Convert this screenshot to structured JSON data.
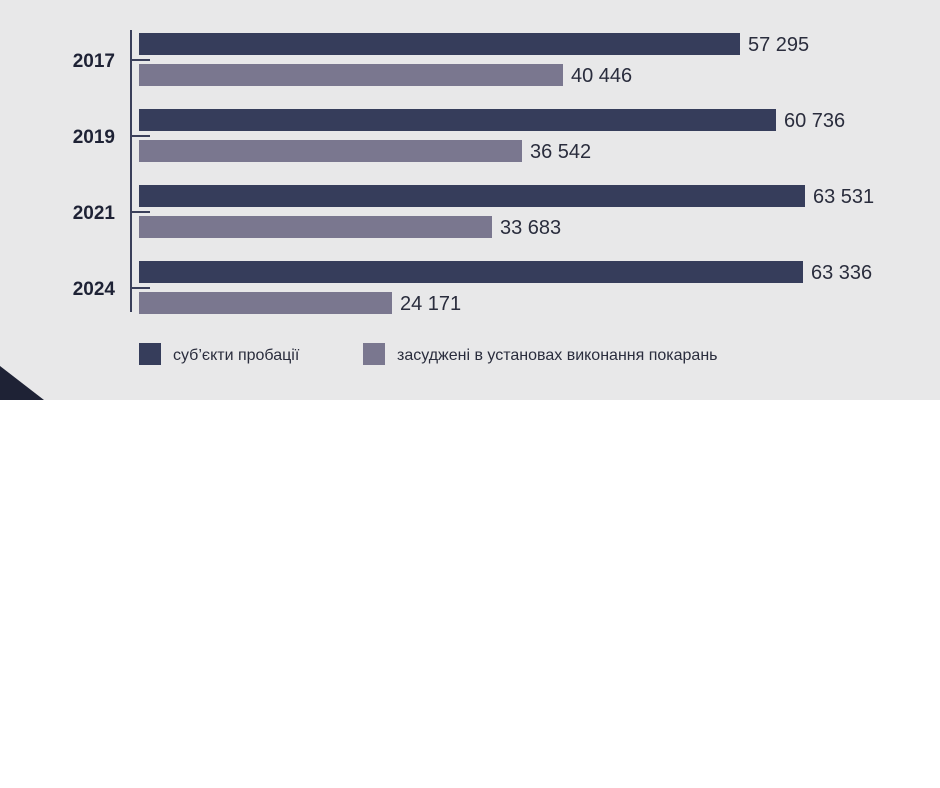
{
  "colors": {
    "panel_bg": "#e8e8e9",
    "axis": "#3a3f5a",
    "corner": "#1e2235"
  },
  "chart_data": {
    "type": "bar",
    "orientation": "horizontal",
    "categories": [
      "2017",
      "2019",
      "2021",
      "2024"
    ],
    "series": [
      {
        "name": "суб’єкти пробації",
        "color": "#363d5b",
        "values": [
          57295,
          60736,
          63531,
          63336
        ],
        "labels": [
          "57 295",
          "60 736",
          "63 531",
          "63 336"
        ]
      },
      {
        "name": "засуджені в установах виконання покарань",
        "color": "#7a778f",
        "values": [
          40446,
          36542,
          33683,
          24171
        ],
        "labels": [
          "40 446",
          "36 542",
          "33 683",
          "24 171"
        ]
      }
    ],
    "xlim": [
      0,
      63531
    ],
    "grid": false,
    "legend_position": "bottom"
  }
}
